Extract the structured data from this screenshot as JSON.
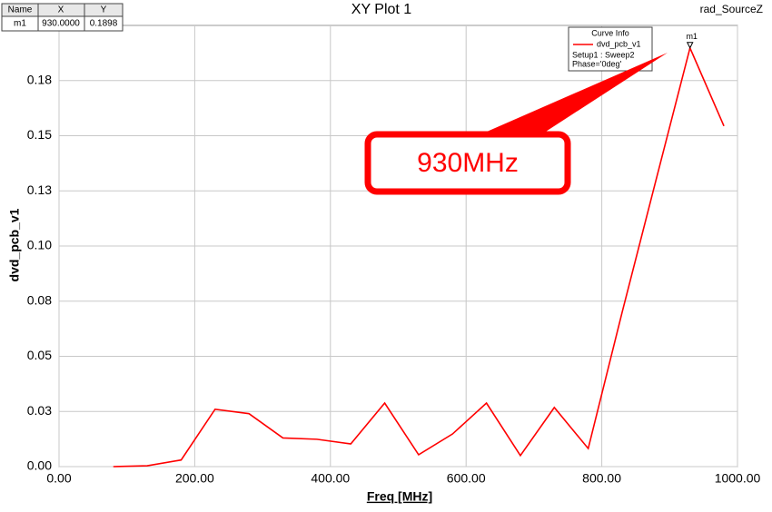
{
  "chart_data": {
    "type": "line",
    "title": "XY Plot 1",
    "subtitle": "rad_SourceZ",
    "x_label": "Freq [MHz]",
    "y_label": "dvd_pcb_v1",
    "x": [
      80,
      130,
      180,
      230,
      280,
      330,
      380,
      430,
      480,
      530,
      580,
      630,
      680,
      730,
      780,
      830,
      880,
      930,
      980
    ],
    "series": [
      {
        "name": "dvd_pcb_v1",
        "color": "#ff0000",
        "values": [
          0,
          0.0004,
          0.003,
          0.026,
          0.024,
          0.013,
          0.0124,
          0.0103,
          0.0288,
          0.0054,
          0.0148,
          0.0288,
          0.005,
          0.0268,
          0.0082,
          0.07,
          0.13,
          0.1898,
          0.1544
        ]
      }
    ],
    "legend_title": "Curve Info",
    "legend_lines": [
      "Setup1 : Sweep2",
      "Phase='0deg'"
    ],
    "xlim": [
      0,
      1000
    ],
    "xticks": [
      {
        "value": 0,
        "label": "0.00"
      },
      {
        "value": 200,
        "label": "200.00"
      },
      {
        "value": 400,
        "label": "400.00"
      },
      {
        "value": 600,
        "label": "600.00"
      },
      {
        "value": 800,
        "label": "800.00"
      },
      {
        "value": 1000,
        "label": "1000.00"
      }
    ],
    "ylim": [
      0,
      0.2
    ],
    "yticks": [
      {
        "value": 0,
        "label": "0.00"
      },
      {
        "value": 0.025,
        "label": "0.03"
      },
      {
        "value": 0.05,
        "label": "0.05"
      },
      {
        "value": 0.075,
        "label": "0.08"
      },
      {
        "value": 0.1,
        "label": "0.10"
      },
      {
        "value": 0.125,
        "label": "0.13"
      },
      {
        "value": 0.15,
        "label": "0.15"
      },
      {
        "value": 0.175,
        "label": "0.18"
      }
    ],
    "grid": true,
    "marker_table_header": [
      "Name",
      "X",
      "Y"
    ],
    "markers": [
      {
        "name": "m1",
        "x": 930,
        "y": 0.1898,
        "x_label": "930.0000",
        "y_label": "0.1898"
      }
    ],
    "annotation": "930MHz"
  }
}
